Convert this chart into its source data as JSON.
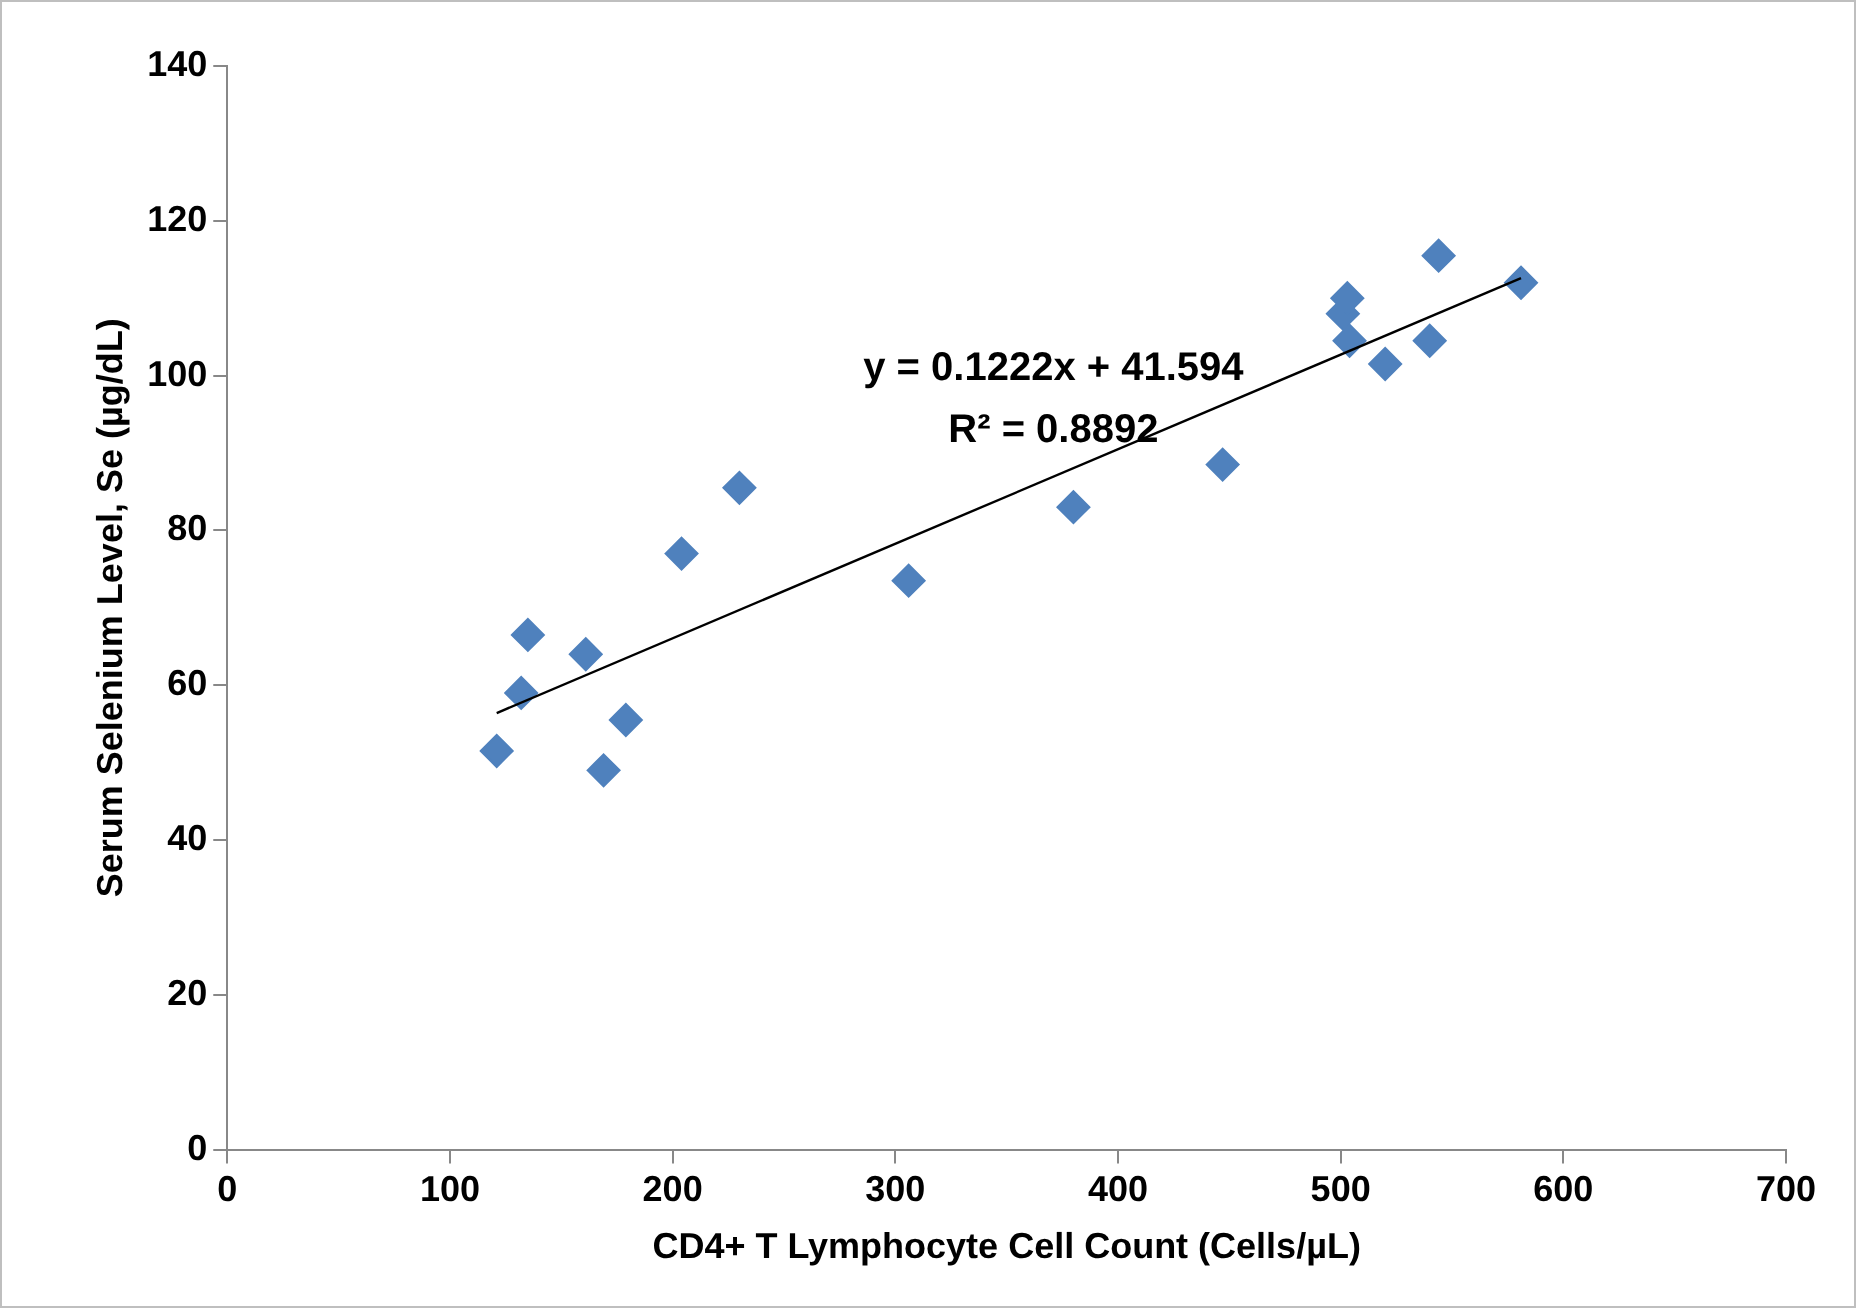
{
  "chart_data": {
    "type": "scatter",
    "xlabel": "CD4+ T Lymphocyte Cell Count (Cells/µL)",
    "ylabel": "Serum Selenium Level, Se (µg/dL)",
    "xlim": [
      0,
      700
    ],
    "xticks": [
      0,
      100,
      200,
      300,
      400,
      500,
      600,
      700
    ],
    "ylim": [
      0,
      140
    ],
    "yticks": [
      0,
      20,
      40,
      60,
      80,
      100,
      120,
      140
    ],
    "grid": false,
    "legend": false,
    "marker": "diamond",
    "series": [
      {
        "color": "#4f81bd",
        "x": [
          121,
          132,
          135,
          161,
          179,
          169,
          204,
          230,
          306,
          380,
          447,
          501,
          503,
          504,
          520,
          540,
          544,
          581
        ],
        "values": [
          51.5,
          59,
          66.5,
          64,
          55.5,
          49,
          77,
          85.5,
          73.5,
          83,
          88.5,
          108,
          110,
          104.5,
          101.5,
          104.5,
          115.5,
          112
        ]
      },
      {
        "type": "line",
        "color": "#000000",
        "x": [
          121,
          581
        ],
        "values": [
          56.4,
          112.6
        ],
        "marker": "none"
      }
    ],
    "annotations": [
      "y = 0.1222x + 41.594",
      "R² = 0.8892"
    ]
  }
}
